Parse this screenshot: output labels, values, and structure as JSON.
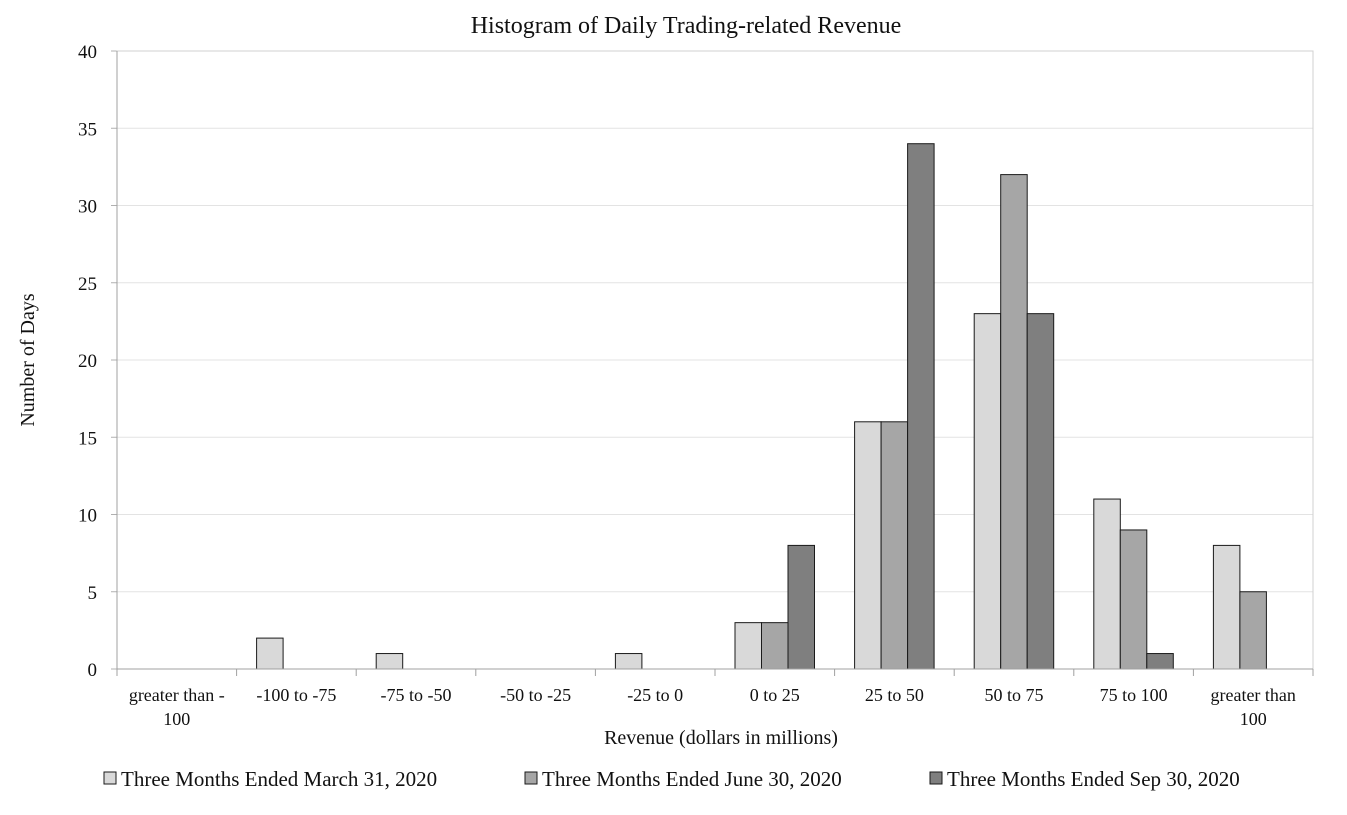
{
  "chart_data": {
    "type": "bar",
    "title": "Histogram of Daily Trading-related Revenue",
    "xlabel": "Revenue (dollars in millions)",
    "ylabel": "Number of Days",
    "ylim": [
      0,
      40
    ],
    "yticks": [
      0,
      5,
      10,
      15,
      20,
      25,
      30,
      35,
      40
    ],
    "grid": true,
    "legend_position": "bottom",
    "categories": [
      [
        "greater than -",
        "100"
      ],
      [
        "-100 to -75"
      ],
      [
        "-75 to -50"
      ],
      [
        "-50 to -25"
      ],
      [
        "-25 to 0"
      ],
      [
        "0 to 25"
      ],
      [
        "25 to 50"
      ],
      [
        "50 to 75"
      ],
      [
        "75 to 100"
      ],
      [
        "greater than",
        "100"
      ]
    ],
    "series": [
      {
        "name": "Three Months Ended March 31, 2020",
        "color": "#d9d9d9",
        "values": [
          0,
          2,
          1,
          0,
          1,
          3,
          16,
          23,
          11,
          8
        ]
      },
      {
        "name": "Three Months Ended June 30, 2020",
        "color": "#a6a6a6",
        "values": [
          0,
          0,
          0,
          0,
          0,
          3,
          16,
          32,
          9,
          5
        ]
      },
      {
        "name": "Three Months Ended Sep 30, 2020",
        "color": "#7f7f7f",
        "values": [
          0,
          0,
          0,
          0,
          0,
          8,
          34,
          23,
          1,
          0
        ]
      }
    ]
  }
}
